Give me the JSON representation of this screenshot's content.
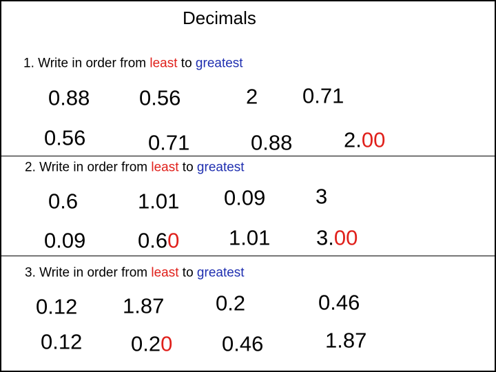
{
  "title": "Decimals",
  "sections": [
    {
      "instruction": [
        "1. Write in order from ",
        "least",
        " to ",
        "greatest"
      ],
      "given": [
        "0.88",
        "0.56",
        "2",
        "0.71"
      ],
      "answers": [
        [
          "0.56"
        ],
        [
          "0.71"
        ],
        [
          "0.88"
        ],
        [
          "2.",
          "00"
        ]
      ]
    },
    {
      "instruction": [
        "2. Write in order from ",
        "least",
        " to ",
        "greatest"
      ],
      "given": [
        "0.6",
        "1.01",
        "0.09",
        "3"
      ],
      "answers": [
        [
          "0.09"
        ],
        [
          "0.6",
          "0"
        ],
        [
          "1.01"
        ],
        [
          "3.",
          "00"
        ]
      ]
    },
    {
      "instruction": [
        "3. Write in order from ",
        "least",
        " to ",
        "greatest"
      ],
      "given": [
        "0.12",
        "1.87",
        "0.2",
        "0.46"
      ],
      "answers": [
        [
          "0.12"
        ],
        [
          "0.2",
          "0"
        ],
        [
          "0.46"
        ],
        [
          "1.87"
        ]
      ]
    }
  ]
}
